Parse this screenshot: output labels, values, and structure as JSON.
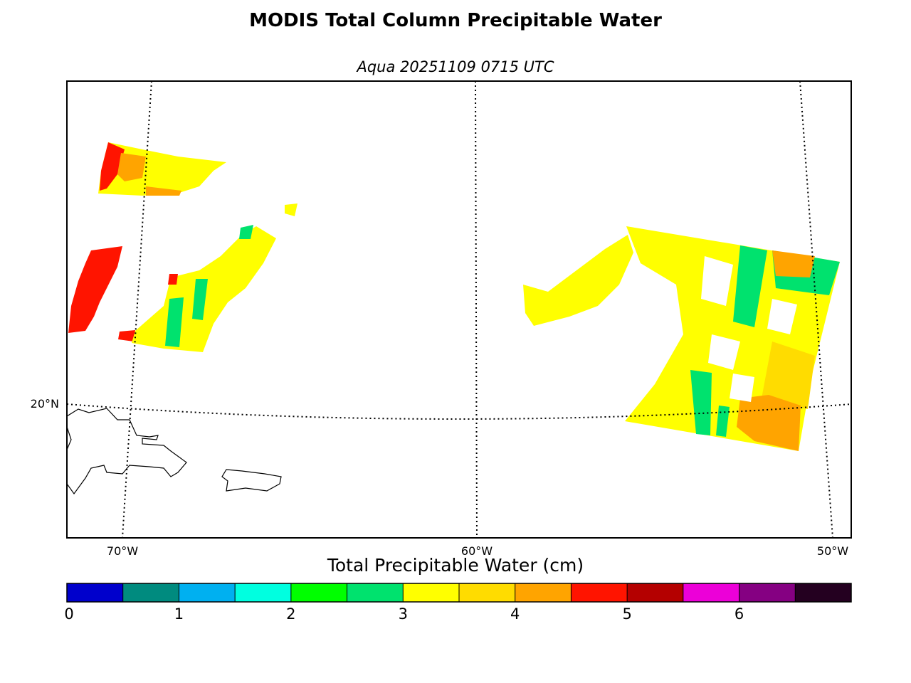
{
  "title": "MODIS Total Column Precipitable Water",
  "subtitle": "Aqua 20251109 0715 UTC",
  "map": {
    "lat_labels": [
      "20°N"
    ],
    "lon_labels": [
      "70°W",
      "60°W",
      "50°W"
    ]
  },
  "colorbar": {
    "label": "Total Precipitable Water (cm)",
    "min": 0,
    "max": 7,
    "step": 0.5,
    "tick_labels": [
      "0",
      "1",
      "2",
      "3",
      "4",
      "5",
      "6"
    ],
    "colors": [
      "#0000cc",
      "#008b7f",
      "#00b0f0",
      "#00ffe0",
      "#00ff00",
      "#00e26e",
      "#ffff00",
      "#ffdc00",
      "#ffa400",
      "#ff1400",
      "#b40000",
      "#ec00d8",
      "#850082",
      "#240020"
    ]
  }
}
